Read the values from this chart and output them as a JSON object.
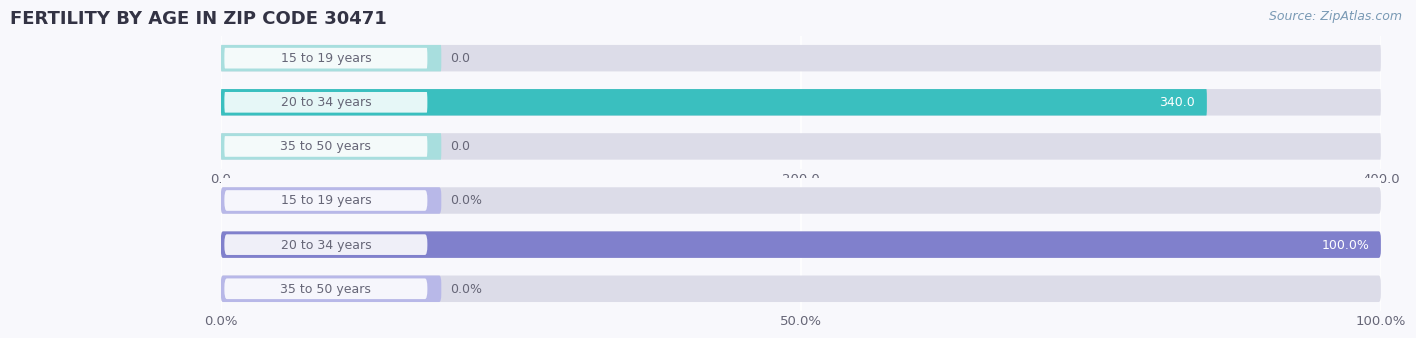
{
  "title": "FERTILITY BY AGE IN ZIP CODE 30471",
  "source": "Source: ZipAtlas.com",
  "top_chart": {
    "categories": [
      "15 to 19 years",
      "20 to 34 years",
      "35 to 50 years"
    ],
    "values": [
      0.0,
      340.0,
      0.0
    ],
    "xlim": [
      0,
      400.0
    ],
    "xticks": [
      0.0,
      200.0,
      400.0
    ],
    "bar_color": "#3abfbf",
    "bar_color_light": "#a8dede",
    "bg_color": "#e8e8f2",
    "bg_bar_color": "#dcdce8",
    "bar_height": 0.6
  },
  "bottom_chart": {
    "categories": [
      "15 to 19 years",
      "20 to 34 years",
      "35 to 50 years"
    ],
    "values": [
      0.0,
      100.0,
      0.0
    ],
    "xlim": [
      0,
      100.0
    ],
    "xticks": [
      0.0,
      50.0,
      100.0
    ],
    "bar_color": "#8080cc",
    "bar_color_light": "#b8b8e8",
    "bg_color": "#e8e8f2",
    "bg_bar_color": "#dcdce8",
    "bar_height": 0.6
  },
  "label_fontsize": 9.5,
  "title_fontsize": 13,
  "source_fontsize": 9,
  "category_fontsize": 9,
  "value_fontsize": 9,
  "label_color": "#666677",
  "title_color": "#333344",
  "background_fig": "#f8f8fc",
  "label_badge_color": "#ffffff",
  "label_badge_alpha": 0.85,
  "source_color": "#7a9ab5"
}
